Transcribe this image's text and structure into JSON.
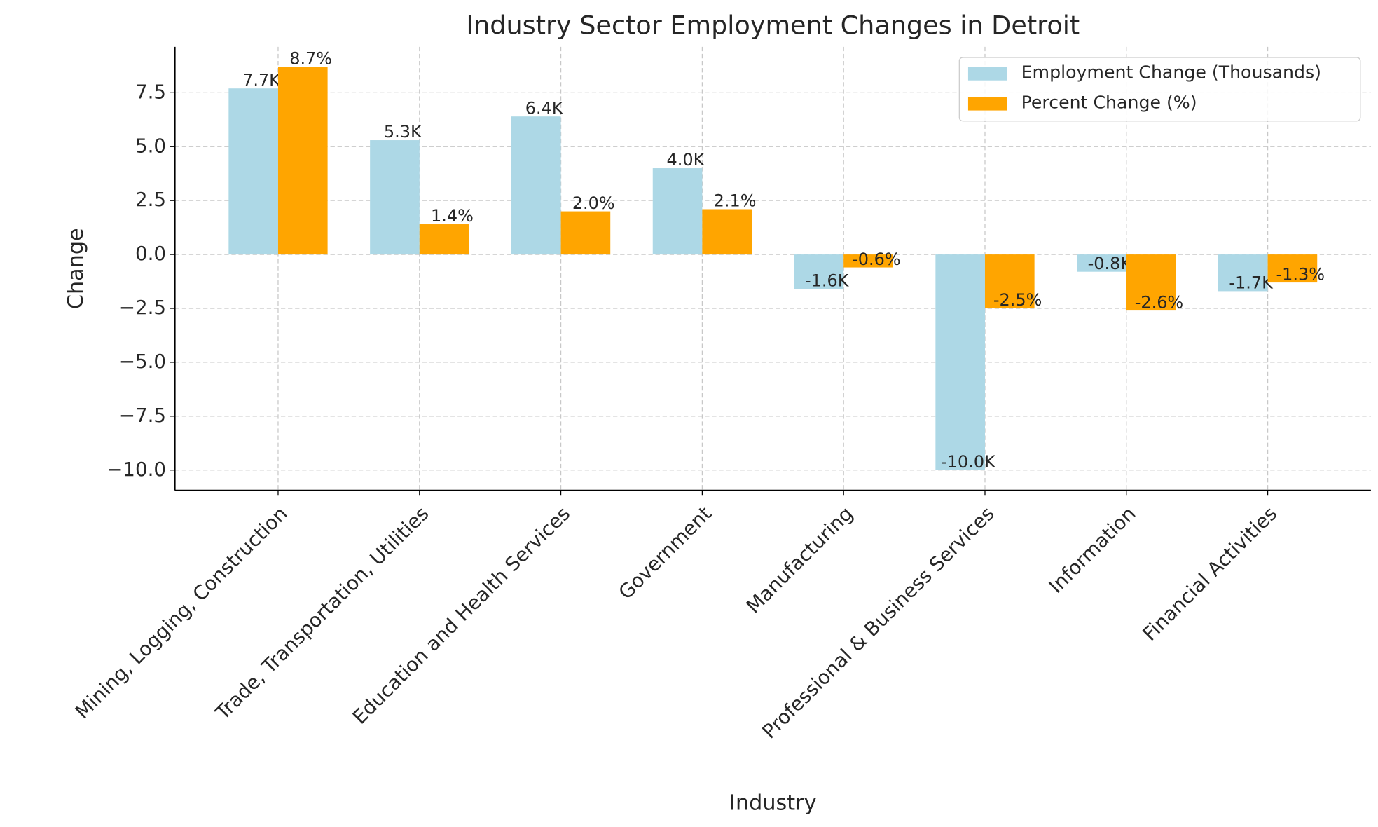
{
  "chart_data": {
    "type": "bar",
    "title": "Industry Sector Employment Changes in Detroit",
    "x_label": "Industry",
    "y_label": "Change",
    "categories": [
      "Mining, Logging, Construction",
      "Trade, Transportation, Utilities",
      "Education and Health Services",
      "Government",
      "Manufacturing",
      "Professional & Business Services",
      "Information",
      "Financial Activities"
    ],
    "series": [
      {
        "name": "Employment Change (Thousands)",
        "color": "#add8e6",
        "values": [
          7.7,
          5.3,
          6.4,
          4.0,
          -1.6,
          -10.0,
          -0.8,
          -1.7
        ],
        "value_labels": [
          "7.7K",
          "5.3K",
          "6.4K",
          "4.0K",
          "-1.6K",
          "-10.0K",
          "-0.8K",
          "-1.7K"
        ]
      },
      {
        "name": "Percent Change (%)",
        "color": "#ffa500",
        "values": [
          8.7,
          1.4,
          2.0,
          2.1,
          -0.6,
          -2.5,
          -2.6,
          -1.3
        ],
        "value_labels": [
          "8.7%",
          "1.4%",
          "2.0%",
          "2.1%",
          "-0.6%",
          "-2.5%",
          "-2.6%",
          "-1.3%"
        ]
      }
    ],
    "ylim": [
      -10.94,
      9.63
    ],
    "yticks": [
      {
        "value": -10.0,
        "label": "−10.0"
      },
      {
        "value": -7.5,
        "label": "−7.5"
      },
      {
        "value": -5.0,
        "label": "−5.0"
      },
      {
        "value": -2.5,
        "label": "−2.5"
      },
      {
        "value": 0.0,
        "label": "0.0"
      },
      {
        "value": 2.5,
        "label": "2.5"
      },
      {
        "value": 5.0,
        "label": "5.0"
      },
      {
        "value": 7.5,
        "label": "7.5"
      }
    ],
    "grid": true,
    "legend": "upper right"
  }
}
